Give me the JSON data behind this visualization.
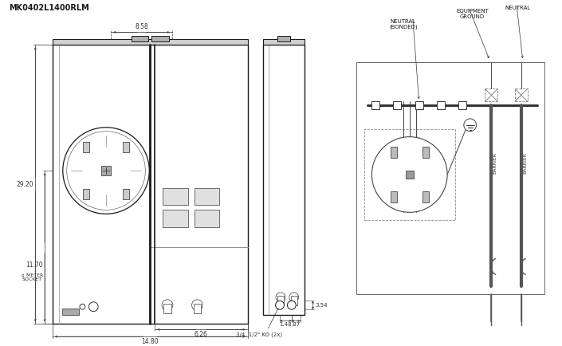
{
  "title": "MK0402L1400RLM",
  "bg_color": "#ffffff",
  "lc": "#1a1a1a",
  "dc": "#333333",
  "gc": "#777777",
  "annotations": {
    "width_top": "8.58",
    "height_left": "29.20",
    "height_socket": "11.70",
    "width_bottom1": "14.80",
    "width_bottom2": "6.26",
    "dim_354": "3.54",
    "dim_148": "1.48",
    "dim_87": ".87",
    "ko_label": "3/4, 1/2\" KO (2x)",
    "neutral_bonded": "NEUTRAL\n(BONDED)",
    "equipment_ground": "EQUIPMENT\nGROUND",
    "neutral": "NEUTRAL",
    "barrier1": "BARRIER",
    "barrier2": "BARRIER",
    "meter_socket_dim": "11.70",
    "meter_socket_label": "¢ METER\nSOCKET"
  }
}
